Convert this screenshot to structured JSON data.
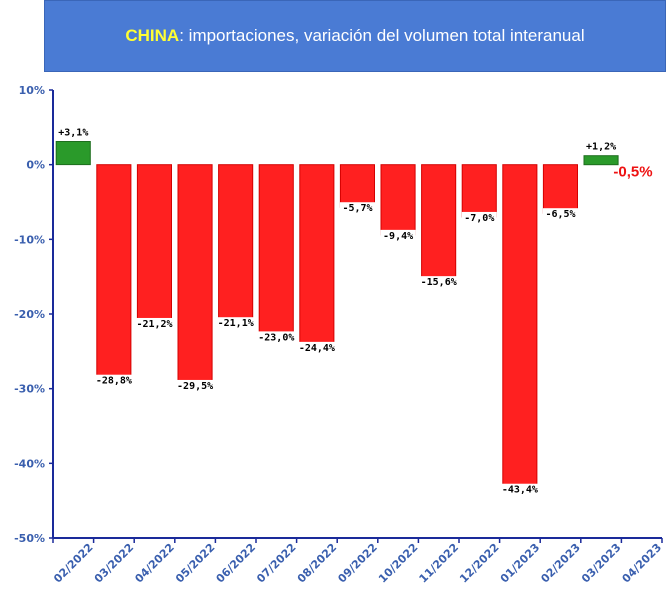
{
  "title": {
    "highlight": "CHINA",
    "text": ": importaciones, variación del volumen total interanual"
  },
  "chart_data": {
    "type": "bar",
    "categories": [
      "02/2022",
      "03/2022",
      "04/2022",
      "05/2022",
      "06/2022",
      "07/2022",
      "08/2022",
      "09/2022",
      "10/2022",
      "11/2022",
      "12/2022",
      "01/2023",
      "02/2023",
      "03/2023",
      "04/2023"
    ],
    "values": [
      3.1,
      -28.8,
      -21.2,
      -29.5,
      -21.1,
      -23.0,
      -24.4,
      -5.7,
      -9.4,
      -15.6,
      -7.0,
      -43.4,
      -6.5,
      1.2,
      null
    ],
    "data_labels": [
      "+3,1%",
      "-28,8%",
      "-21,2%",
      "-29,5%",
      "-21,1%",
      "-23,0%",
      "-24,4%",
      "-5,7%",
      "-9,4%",
      "-15,6%",
      "-7,0%",
      "-43,4%",
      "-6,5%",
      "+1,2%",
      ""
    ],
    "ylim": [
      -50,
      10
    ],
    "yticks": [
      10,
      0,
      -10,
      -20,
      -30,
      -40,
      -50
    ],
    "ytick_labels": [
      "10%",
      "0%",
      "-10%",
      "-20%",
      "-30%",
      "-40%",
      "-50%"
    ],
    "annotation": {
      "text": "-0,5%",
      "category": "03/2023"
    },
    "colors": {
      "positive": "#2a9a2a",
      "negative": "#ff2020",
      "axis": "#1a2a9a",
      "tick_text": "#3a5fae",
      "annotation": "#ee1111"
    },
    "xlabel": "",
    "ylabel": "",
    "grid": false
  }
}
